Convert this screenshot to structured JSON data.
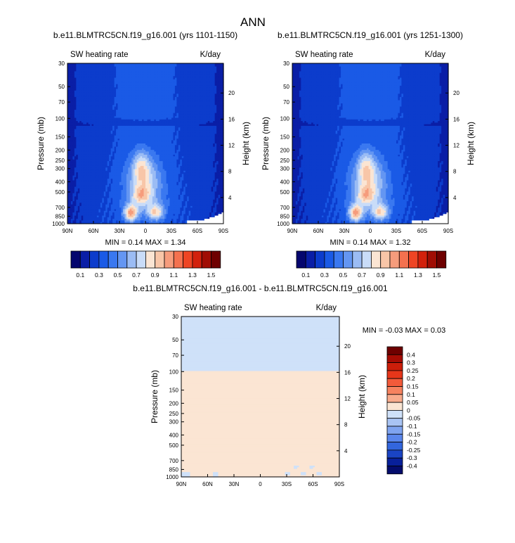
{
  "figure": {
    "title": "ANN"
  },
  "chart_data": [
    {
      "type": "heatmap",
      "title": "b.e11.BLMTRC5CN.f19_g16.001 (yrs 1101-1150)",
      "left_label": "SW heating rate",
      "right_label": "K/day",
      "ylabel": "Pressure (mb)",
      "ylabel_right": "Height (km)",
      "x_ticks": [
        "90N",
        "60N",
        "30N",
        "0",
        "30S",
        "60S",
        "90S"
      ],
      "y_ticks": [
        "30",
        "50",
        "70",
        "100",
        "150",
        "200",
        "250",
        "300",
        "400",
        "500",
        "700",
        "850",
        "1000"
      ],
      "y_ticks_right": [
        "20",
        "16",
        "12",
        "8",
        "4"
      ],
      "min_max_text": "MIN =  0.14  MAX =  1.34",
      "min": 0.14,
      "max": 1.34,
      "colorbar": {
        "orientation": "horizontal",
        "levels": [
          "0.1",
          "0.3",
          "0.5",
          "0.7",
          "0.9",
          "1.1",
          "1.3",
          "1.5"
        ]
      }
    },
    {
      "type": "heatmap",
      "title": "b.e11.BLMTRC5CN.f19_g16.001 (yrs 1251-1300)",
      "left_label": "SW heating rate",
      "right_label": "K/day",
      "ylabel": "Pressure (mb)",
      "ylabel_right": "Height (km)",
      "x_ticks": [
        "90N",
        "60N",
        "30N",
        "0",
        "30S",
        "60S",
        "90S"
      ],
      "y_ticks": [
        "30",
        "50",
        "70",
        "100",
        "150",
        "200",
        "250",
        "300",
        "400",
        "500",
        "700",
        "850",
        "1000"
      ],
      "y_ticks_right": [
        "20",
        "16",
        "12",
        "8",
        "4"
      ],
      "min_max_text": "MIN =  0.14  MAX =  1.32",
      "min": 0.14,
      "max": 1.32,
      "colorbar": {
        "orientation": "horizontal",
        "levels": [
          "0.1",
          "0.3",
          "0.5",
          "0.7",
          "0.9",
          "1.1",
          "1.3",
          "1.5"
        ]
      }
    },
    {
      "type": "heatmap",
      "title": "b.e11.BLMTRC5CN.f19_g16.001 - b.e11.BLMTRC5CN.f19_g16.001",
      "left_label": "SW heating rate",
      "right_label": "K/day",
      "ylabel": "Pressure (mb)",
      "ylabel_right": "Height (km)",
      "x_ticks": [
        "90N",
        "60N",
        "30N",
        "0",
        "30S",
        "60S",
        "90S"
      ],
      "y_ticks": [
        "30",
        "50",
        "70",
        "100",
        "150",
        "200",
        "250",
        "300",
        "400",
        "500",
        "700",
        "850",
        "1000"
      ],
      "y_ticks_right": [
        "20",
        "16",
        "12",
        "8",
        "4"
      ],
      "min_max_text": "MIN = -0.03  MAX =  0.03",
      "min": -0.03,
      "max": 0.03,
      "colorbar": {
        "orientation": "vertical",
        "levels": [
          "0.4",
          "0.3",
          "0.25",
          "0.2",
          "0.15",
          "0.1",
          "0.05",
          "0",
          "-0.05",
          "-0.1",
          "-0.15",
          "-0.2",
          "-0.25",
          "-0.3",
          "-0.4"
        ]
      }
    }
  ],
  "colors": {
    "seq": [
      "#05066e",
      "#0a1ea6",
      "#0c3ccc",
      "#1a5ae6",
      "#3a78f0",
      "#6496f2",
      "#9bbcf4",
      "#c9dcf8",
      "#fbe5d3",
      "#f8c6a8",
      "#f69c7c",
      "#f4714f",
      "#ee4524",
      "#d2210c",
      "#a00d04",
      "#6e0000"
    ],
    "div": [
      "#6e0000",
      "#a60c04",
      "#cc1e0a",
      "#e6361a",
      "#f25a3a",
      "#f6825f",
      "#f8ab8c",
      "#fbe5d3",
      "#cfe1f9",
      "#a9c4f4",
      "#7fa4f0",
      "#5a86ec",
      "#3366dd",
      "#1a44c4",
      "#08209a",
      "#040c6c"
    ]
  }
}
